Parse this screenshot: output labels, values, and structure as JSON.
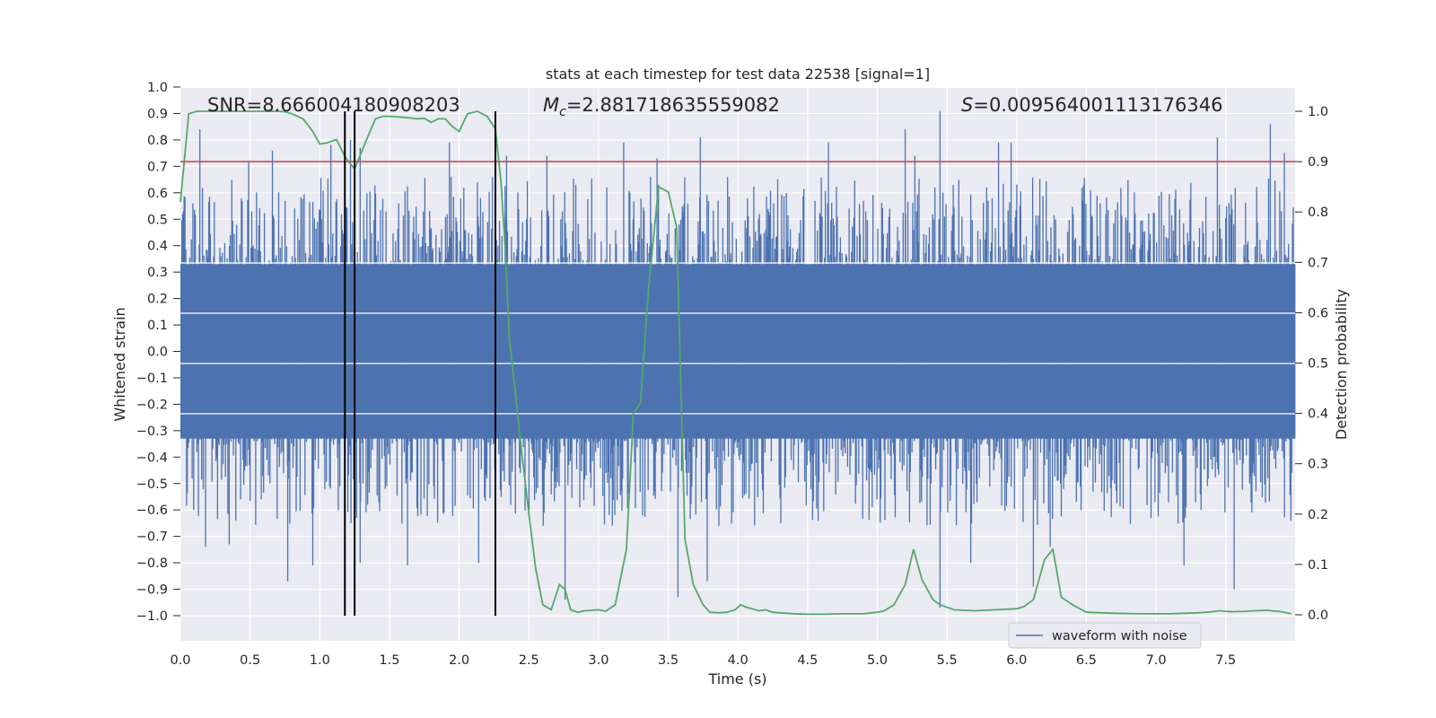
{
  "chart_data": {
    "type": "line",
    "title": "stats at each timestep for test data 22538 [signal=1]",
    "xlabel": "Time (s)",
    "ylabel_left": "Whitened strain",
    "ylabel_right": "Detection probability",
    "xlim": [
      0,
      8
    ],
    "ylim_left": [
      -1.0,
      1.0
    ],
    "ylim_right": [
      0.0,
      1.0
    ],
    "x_ticks": [
      "0.0",
      "0.5",
      "1.0",
      "1.5",
      "2.0",
      "2.5",
      "3.0",
      "3.5",
      "4.0",
      "4.5",
      "5.0",
      "5.5",
      "6.0",
      "6.5",
      "7.0",
      "7.5"
    ],
    "y_left_ticks": [
      "1.0",
      "0.9",
      "0.8",
      "0.7",
      "0.6",
      "0.5",
      "0.4",
      "0.3",
      "0.2",
      "0.1",
      "0.0",
      "−0.1",
      "−0.2",
      "−0.3",
      "−0.4",
      "−0.5",
      "−0.6",
      "−0.7",
      "−0.8",
      "−0.9",
      "−1.0"
    ],
    "y_right_ticks": [
      "1.0",
      "0.9",
      "0.8",
      "0.7",
      "0.6",
      "0.5",
      "0.4",
      "0.3",
      "0.2",
      "0.1",
      "0.0"
    ],
    "grid": true,
    "legend_position": "lower-right",
    "annotations": {
      "snr": "SNR=8.666004180908203",
      "mc_symbol": "M",
      "mc_sub": "c",
      "mc_value": "=2.881718635559082",
      "s_symbol": "S",
      "s_value": "=0.009564001113176346"
    },
    "threshold": {
      "value": 0.9,
      "axis": "right",
      "color": "#c44e52"
    },
    "vlines": [
      1.18,
      1.25,
      2.26
    ],
    "series": [
      {
        "name": "waveform with noise",
        "axis": "left",
        "color": "#4c72b0",
        "sample_rate_hz": 2048,
        "duration_s": 8.0,
        "envelope": {
          "body": 0.33,
          "typical_peak": 0.55
        },
        "peaks": [
          [
            0.14,
            0.84
          ],
          [
            0.18,
            -0.74
          ],
          [
            0.35,
            -0.73
          ],
          [
            0.49,
            0.72
          ],
          [
            0.66,
            0.76
          ],
          [
            0.77,
            -0.87
          ],
          [
            0.95,
            -0.81
          ],
          [
            1.08,
            0.78
          ],
          [
            1.22,
            0.8
          ],
          [
            1.29,
            0.77
          ],
          [
            1.29,
            -0.8
          ],
          [
            1.63,
            -0.81
          ],
          [
            1.93,
            0.79
          ],
          [
            2.14,
            -0.8
          ],
          [
            2.34,
            0.74
          ],
          [
            2.63,
            0.74
          ],
          [
            2.76,
            -0.94
          ],
          [
            3.18,
            0.79
          ],
          [
            3.42,
            0.73
          ],
          [
            3.57,
            -0.93
          ],
          [
            3.73,
            0.81
          ],
          [
            3.78,
            -0.87
          ],
          [
            4.65,
            0.79
          ],
          [
            5.2,
            0.84
          ],
          [
            5.27,
            0.74
          ],
          [
            5.45,
            0.91
          ],
          [
            5.45,
            -0.97
          ],
          [
            5.67,
            -0.8
          ],
          [
            5.87,
            0.79
          ],
          [
            5.96,
            0.79
          ],
          [
            6.12,
            -0.89
          ],
          [
            6.24,
            -0.74
          ],
          [
            7.2,
            -0.81
          ],
          [
            7.44,
            0.81
          ],
          [
            7.56,
            -0.9
          ],
          [
            7.82,
            0.86
          ],
          [
            7.92,
            0.75
          ]
        ]
      },
      {
        "name": "detection probability",
        "axis": "right",
        "color": "#55a868",
        "x": [
          0.0,
          0.06,
          0.12,
          0.2,
          0.3,
          0.4,
          0.5,
          0.6,
          0.7,
          0.75,
          0.8,
          0.88,
          0.95,
          1.0,
          1.05,
          1.12,
          1.18,
          1.25,
          1.33,
          1.4,
          1.45,
          1.5,
          1.6,
          1.7,
          1.75,
          1.8,
          1.85,
          1.9,
          1.95,
          2.0,
          2.06,
          2.13,
          2.2,
          2.26,
          2.3,
          2.33,
          2.36,
          2.4,
          2.45,
          2.5,
          2.55,
          2.6,
          2.66,
          2.72,
          2.76,
          2.8,
          2.85,
          2.9,
          3.0,
          3.05,
          3.12,
          3.2,
          3.25,
          3.3,
          3.36,
          3.43,
          3.5,
          3.56,
          3.62,
          3.68,
          3.75,
          3.8,
          3.86,
          3.92,
          3.98,
          4.02,
          4.06,
          4.1,
          4.15,
          4.2,
          4.25,
          4.3,
          4.4,
          4.5,
          4.6,
          4.75,
          4.9,
          5.0,
          5.05,
          5.12,
          5.2,
          5.26,
          5.32,
          5.4,
          5.45,
          5.55,
          5.7,
          5.85,
          6.0,
          6.05,
          6.12,
          6.2,
          6.26,
          6.32,
          6.4,
          6.5,
          6.7,
          6.9,
          7.1,
          7.2,
          7.3,
          7.4,
          7.45,
          7.5,
          7.55,
          7.65,
          7.7,
          7.8,
          7.9,
          7.97
        ],
        "values": [
          0.82,
          0.995,
          1.0,
          1.0,
          1.0,
          1.0,
          1.0,
          1.0,
          1.0,
          0.999,
          0.995,
          0.985,
          0.96,
          0.935,
          0.937,
          0.944,
          0.91,
          0.885,
          0.94,
          0.985,
          0.99,
          0.99,
          0.988,
          0.985,
          0.986,
          0.978,
          0.985,
          0.985,
          0.97,
          0.96,
          0.995,
          1.0,
          0.99,
          0.965,
          0.86,
          0.73,
          0.55,
          0.45,
          0.32,
          0.2,
          0.09,
          0.02,
          0.01,
          0.06,
          0.05,
          0.01,
          0.005,
          0.008,
          0.01,
          0.007,
          0.02,
          0.13,
          0.4,
          0.42,
          0.65,
          0.85,
          0.84,
          0.77,
          0.15,
          0.06,
          0.02,
          0.005,
          0.004,
          0.005,
          0.01,
          0.02,
          0.015,
          0.012,
          0.008,
          0.01,
          0.005,
          0.004,
          0.002,
          0.001,
          0.001,
          0.002,
          0.002,
          0.005,
          0.008,
          0.02,
          0.06,
          0.13,
          0.07,
          0.03,
          0.02,
          0.01,
          0.008,
          0.01,
          0.012,
          0.016,
          0.03,
          0.11,
          0.13,
          0.035,
          0.02,
          0.005,
          0.003,
          0.002,
          0.002,
          0.003,
          0.004,
          0.006,
          0.008,
          0.007,
          0.006,
          0.007,
          0.008,
          0.009,
          0.006,
          0.002
        ]
      }
    ]
  }
}
